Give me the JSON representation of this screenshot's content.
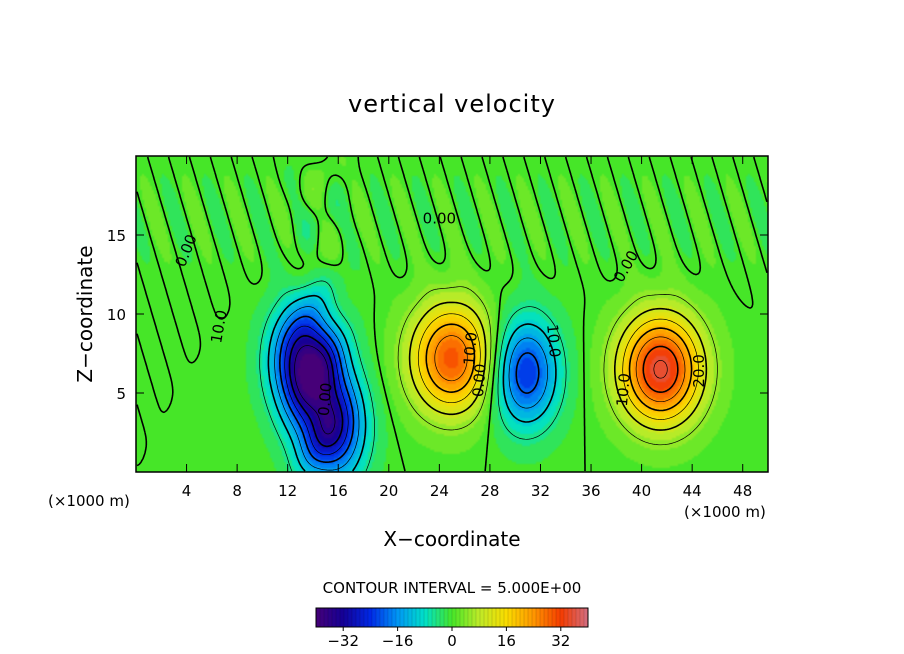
{
  "chart_data": {
    "type": "contour",
    "title": "vertical velocity",
    "xlabel": "X−coordinate",
    "ylabel": "Z−coordinate",
    "x_units": "(×1000 m)",
    "xlim": [
      0,
      50
    ],
    "ylim": [
      0,
      20
    ],
    "x_ticks": [
      4,
      8,
      12,
      16,
      20,
      24,
      28,
      32,
      36,
      40,
      44,
      48
    ],
    "y_ticks": [
      5,
      10,
      15
    ],
    "contour_interval_label": "CONTOUR INTERVAL = 5.000E+00",
    "contour_labels": [
      {
        "text": "0.00",
        "x": 4.0,
        "y": 14.0,
        "rot": -68
      },
      {
        "text": "10.0",
        "x": 6.6,
        "y": 9.2,
        "rot": -80
      },
      {
        "text": "0.00",
        "x": 15.0,
        "y": 4.6,
        "rot": -85
      },
      {
        "text": "0.00",
        "x": 24.0,
        "y": 16.0,
        "rot": 0
      },
      {
        "text": "10.0",
        "x": 26.5,
        "y": 7.8,
        "rot": -85
      },
      {
        "text": "0.00",
        "x": 27.2,
        "y": 5.8,
        "rot": -85
      },
      {
        "text": "10.0",
        "x": 33.0,
        "y": 8.3,
        "rot": 85
      },
      {
        "text": "0.00",
        "x": 38.8,
        "y": 13.0,
        "rot": -60
      },
      {
        "text": "10.0",
        "x": 38.6,
        "y": 5.2,
        "rot": -85
      },
      {
        "text": "20.0",
        "x": 44.6,
        "y": 6.4,
        "rot": -90
      }
    ],
    "field_extrema": [
      {
        "kind": "min",
        "x": 13.5,
        "y": 7.0,
        "value": -38
      },
      {
        "kind": "min",
        "x": 15.4,
        "y": 2.8,
        "value": -30
      },
      {
        "kind": "min",
        "x": 30.8,
        "y": 6.3,
        "value": -24
      },
      {
        "kind": "max",
        "x": 25.0,
        "y": 7.2,
        "value": 30
      },
      {
        "kind": "max",
        "x": 41.5,
        "y": 6.5,
        "value": 36
      }
    ],
    "colorbar": {
      "range": [
        -40,
        40
      ],
      "ticks": [
        -32,
        -16,
        0,
        16,
        32
      ]
    }
  }
}
